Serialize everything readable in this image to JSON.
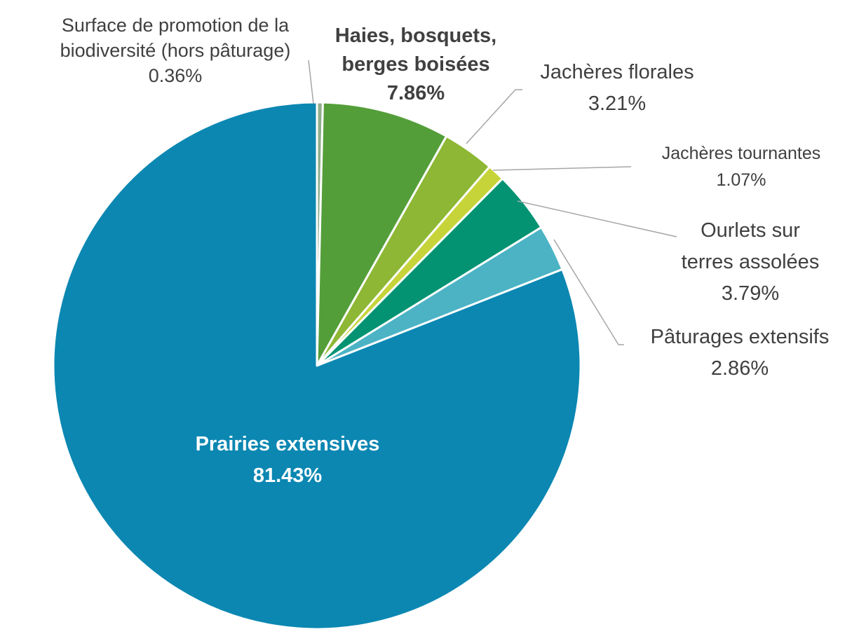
{
  "chart_data": {
    "type": "pie",
    "slices": [
      {
        "label_lines": [
          "Surface de promotion de la",
          "biodiversité (hors pâturage)"
        ],
        "value_label": "0.36%",
        "value": 0.36,
        "color": "#8fae8c"
      },
      {
        "label_lines": [
          "Haies, bosquets,",
          "berges boisées"
        ],
        "value_label": "7.86%",
        "value": 7.86,
        "color": "#549e3a"
      },
      {
        "label_lines": [
          "Jachères florales"
        ],
        "value_label": "3.21%",
        "value": 3.21,
        "color": "#8db734"
      },
      {
        "label_lines": [
          "Jachères tournantes"
        ],
        "value_label": "1.07%",
        "value": 1.07,
        "color": "#c6d43a"
      },
      {
        "label_lines": [
          "Ourlets sur",
          "terres assolées"
        ],
        "value_label": "3.79%",
        "value": 3.79,
        "color": "#039373"
      },
      {
        "label_lines": [
          "Pâturages extensifs"
        ],
        "value_label": "2.86%",
        "value": 2.86,
        "color": "#4bb3c4"
      },
      {
        "label_lines": [
          "Prairies extensives"
        ],
        "value_label": "81.43%",
        "value": 81.43,
        "color": "#0b87b2"
      }
    ]
  }
}
